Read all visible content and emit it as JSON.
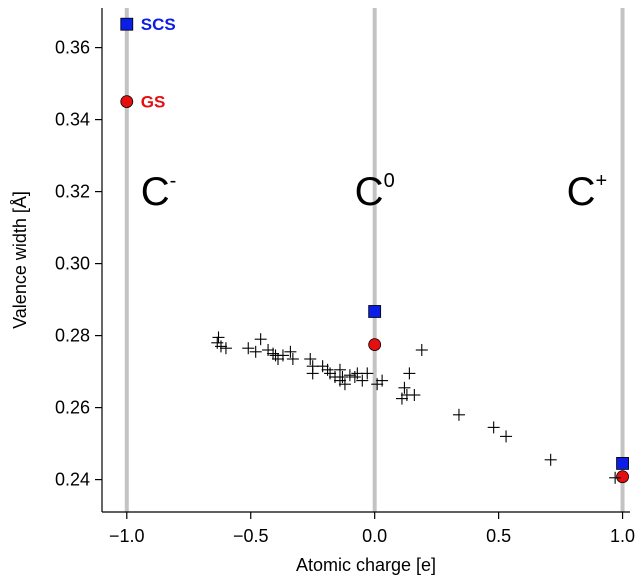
{
  "chart_data": {
    "type": "scatter",
    "title": "",
    "xlabel": "Atomic charge [e]",
    "ylabel": "Valence width [Å]",
    "xlim": [
      -1.1,
      1.03
    ],
    "ylim": [
      0.231,
      0.371
    ],
    "x_ticks": [
      -1.0,
      -0.5,
      0.0,
      0.5,
      1.0
    ],
    "x_tick_labels": [
      "−1.0",
      "−0.5",
      "0.0",
      "0.5",
      "1.0"
    ],
    "y_ticks": [
      0.24,
      0.26,
      0.28,
      0.3,
      0.32,
      0.34,
      0.36
    ],
    "y_tick_labels": [
      "0.24",
      "0.26",
      "0.28",
      "0.30",
      "0.32",
      "0.34",
      "0.36"
    ],
    "reference_lines": [
      {
        "x": -1.0,
        "label": "C",
        "sup": "-"
      },
      {
        "x": 0.0,
        "label": "C",
        "sup": "0"
      },
      {
        "x": 1.0,
        "label": "C",
        "sup": "+"
      }
    ],
    "series": [
      {
        "name": "SCS",
        "marker": "square",
        "color": "#0a1ee6",
        "points": [
          [
            -1.0,
            0.3665
          ],
          [
            0.0,
            0.2867
          ],
          [
            1.0,
            0.2445
          ]
        ]
      },
      {
        "name": "GS",
        "marker": "circle",
        "color": "#e60f0f",
        "points": [
          [
            -1.0,
            0.345
          ],
          [
            0.0,
            0.2775
          ],
          [
            1.0,
            0.2408
          ]
        ]
      },
      {
        "name": "",
        "marker": "plus",
        "color": "#000000",
        "points": [
          [
            -0.63,
            0.2795
          ],
          [
            -0.635,
            0.278
          ],
          [
            -0.62,
            0.277
          ],
          [
            -0.6,
            0.2765
          ],
          [
            -0.51,
            0.2765
          ],
          [
            -0.46,
            0.279
          ],
          [
            -0.48,
            0.2755
          ],
          [
            -0.43,
            0.276
          ],
          [
            -0.41,
            0.275
          ],
          [
            -0.4,
            0.2745
          ],
          [
            -0.39,
            0.2735
          ],
          [
            -0.37,
            0.2745
          ],
          [
            -0.34,
            0.2755
          ],
          [
            -0.33,
            0.2735
          ],
          [
            -0.26,
            0.2735
          ],
          [
            -0.25,
            0.2715
          ],
          [
            -0.25,
            0.2695
          ],
          [
            -0.21,
            0.2715
          ],
          [
            -0.19,
            0.2705
          ],
          [
            -0.18,
            0.2695
          ],
          [
            -0.16,
            0.2685
          ],
          [
            -0.14,
            0.2705
          ],
          [
            -0.14,
            0.2675
          ],
          [
            -0.13,
            0.2685
          ],
          [
            -0.12,
            0.2665
          ],
          [
            -0.1,
            0.269
          ],
          [
            -0.08,
            0.2685
          ],
          [
            -0.07,
            0.2695
          ],
          [
            -0.05,
            0.2675
          ],
          [
            -0.03,
            0.2695
          ],
          [
            0.01,
            0.2665
          ],
          [
            0.03,
            0.2675
          ],
          [
            0.19,
            0.276
          ],
          [
            0.14,
            0.2695
          ],
          [
            0.12,
            0.2655
          ],
          [
            0.11,
            0.2625
          ],
          [
            0.13,
            0.2635
          ],
          [
            0.16,
            0.2635
          ],
          [
            0.34,
            0.258
          ],
          [
            0.48,
            0.2545
          ],
          [
            0.53,
            0.252
          ],
          [
            0.71,
            0.2455
          ],
          [
            0.97,
            0.2405
          ]
        ]
      }
    ],
    "legend_annotations": [
      {
        "text": "SCS",
        "series": "SCS"
      },
      {
        "text": "GS",
        "series": "GS"
      }
    ]
  }
}
